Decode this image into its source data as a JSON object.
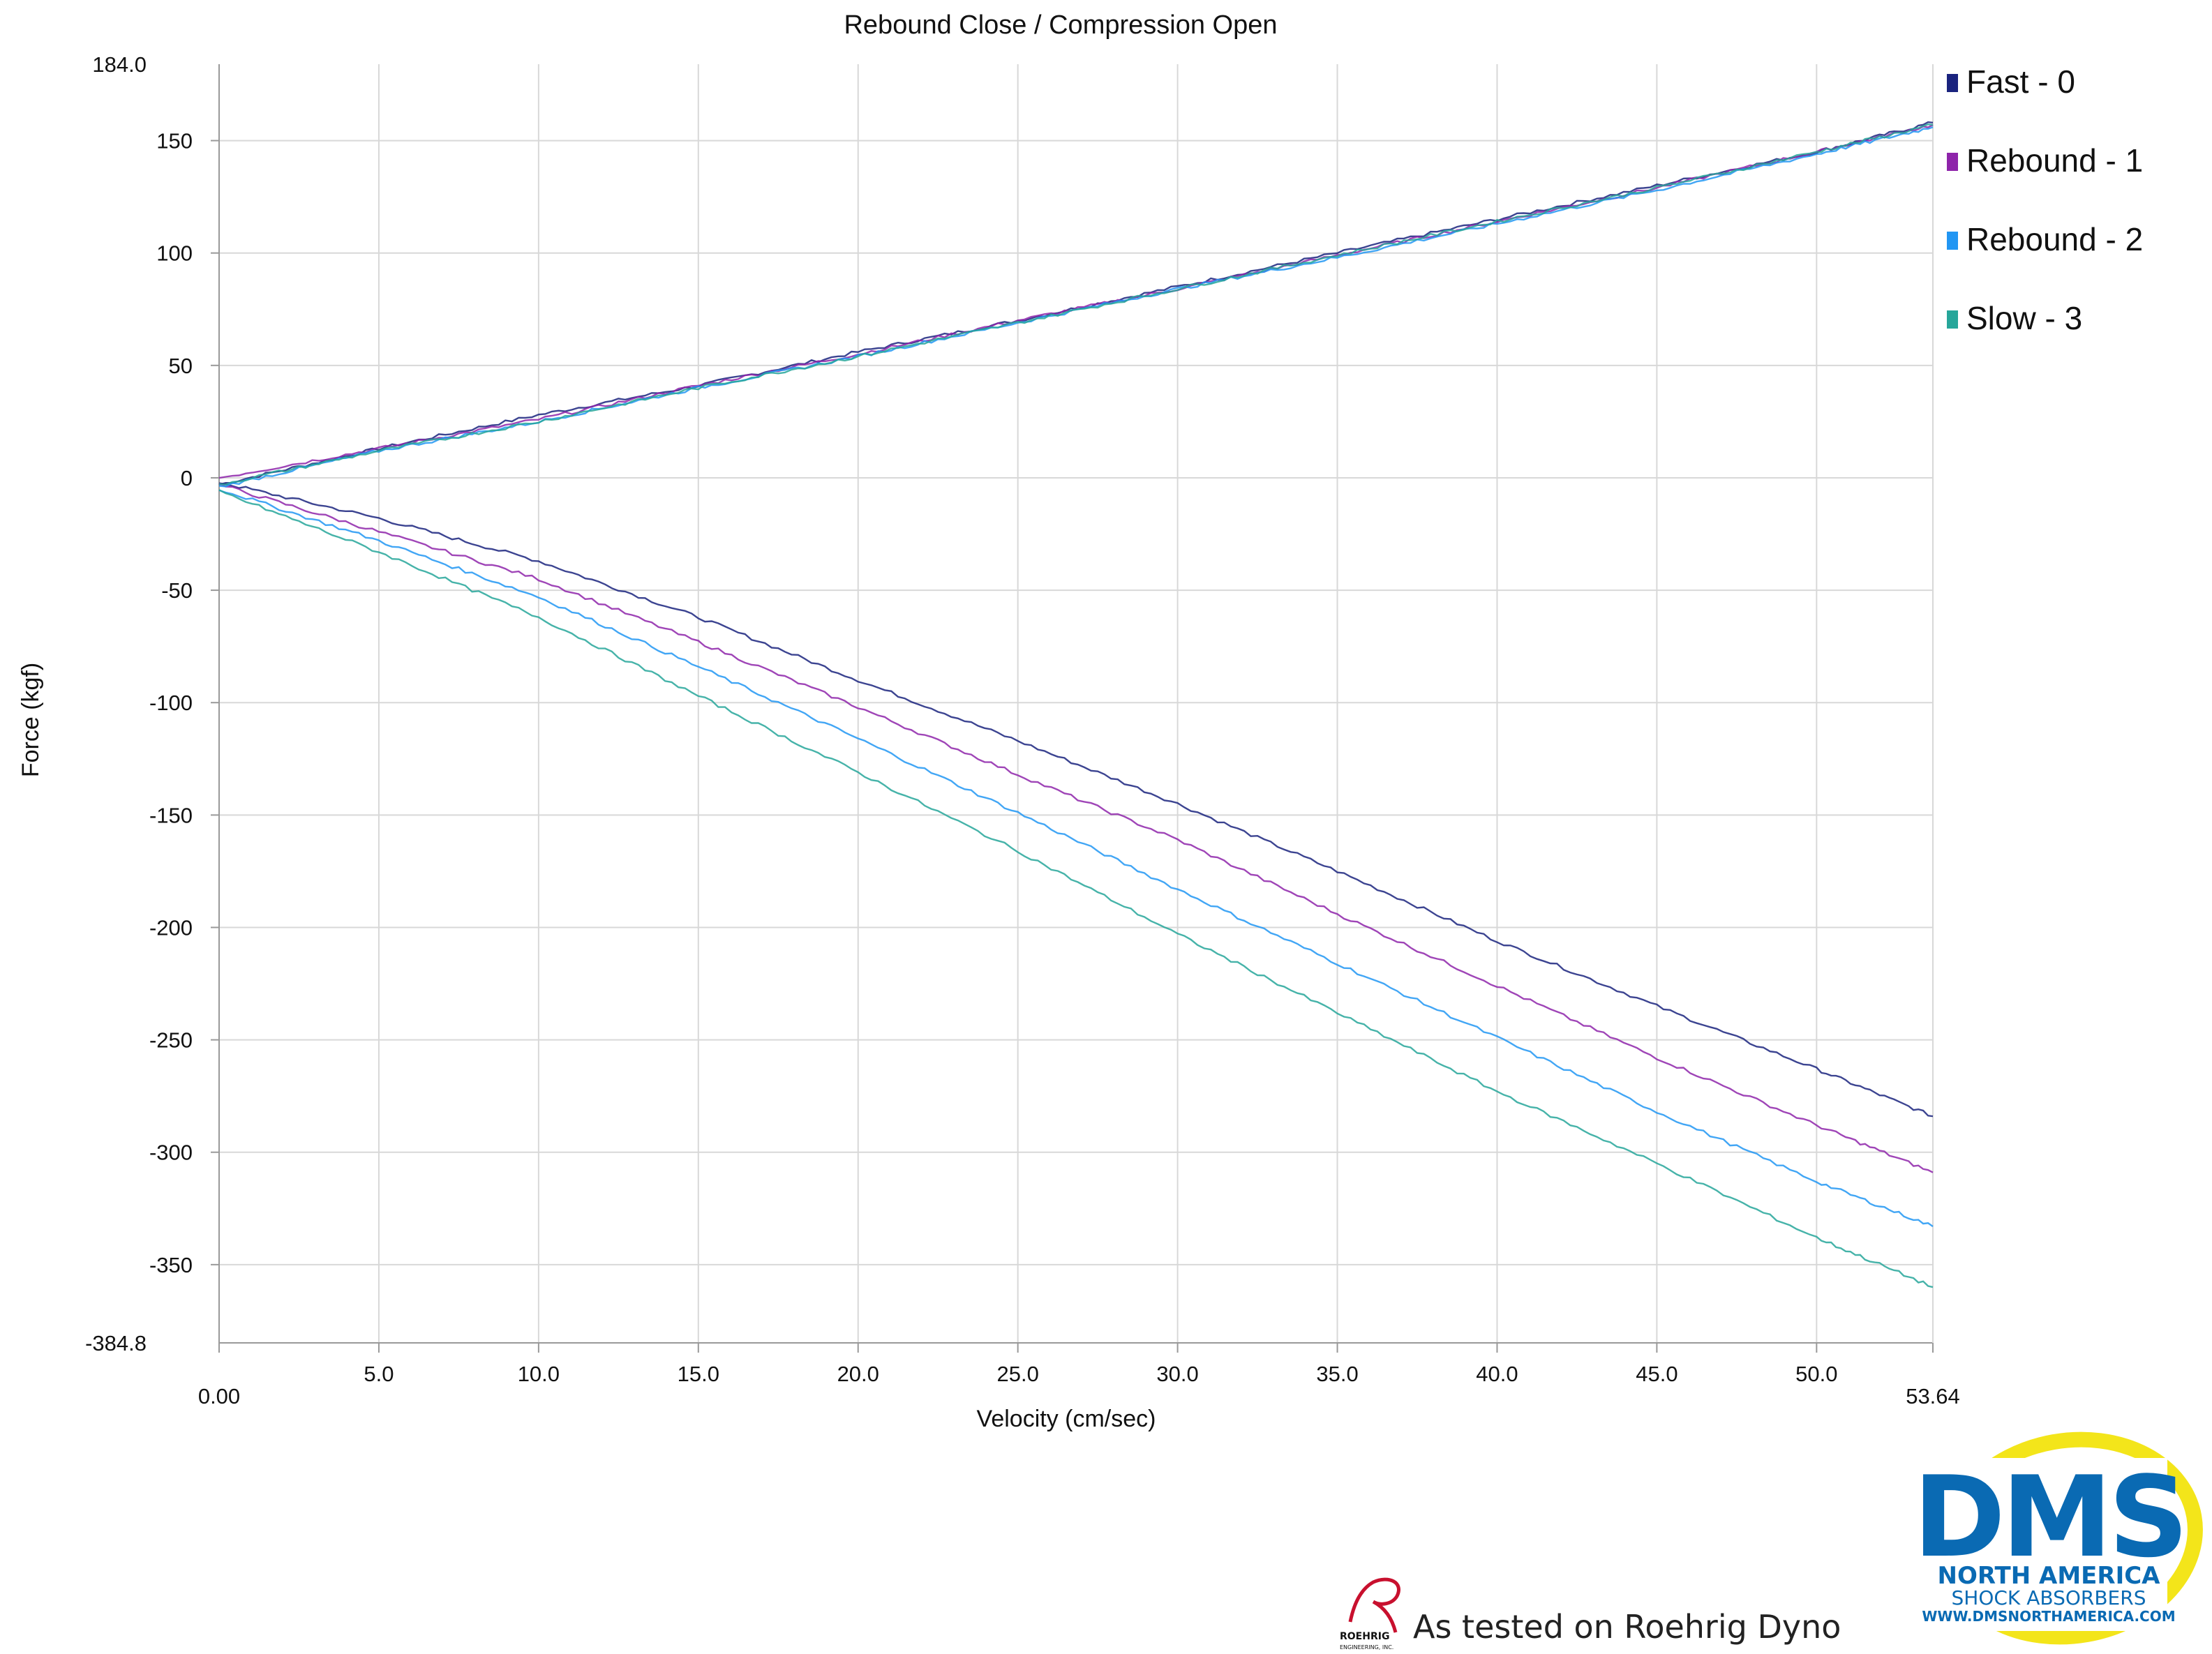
{
  "chart_data": {
    "type": "line",
    "title": "Rebound Close / Compression Open",
    "xlabel": "Velocity (cm/sec)",
    "ylabel": "Force (kgf)",
    "xlim": [
      0,
      53.64
    ],
    "ylim": [
      -384.8,
      184.0
    ],
    "x_ticks": [
      0,
      5,
      10,
      15,
      20,
      25,
      30,
      35,
      40,
      45,
      50,
      53.64
    ],
    "x_tick_labels": [
      "0.00",
      "5.0",
      "10.0",
      "15.0",
      "20.0",
      "25.0",
      "30.0",
      "35.0",
      "40.0",
      "45.0",
      "50.0",
      "53.64"
    ],
    "y_ticks": [
      184.0,
      150,
      100,
      50,
      0,
      -50,
      -100,
      -150,
      -200,
      -250,
      -300,
      -350,
      -384.8
    ],
    "y_tick_labels": [
      "184.0",
      "150",
      "100",
      "50",
      "0",
      "-50",
      "-100",
      "-150",
      "-200",
      "-250",
      "-300",
      "-350",
      "-384.8"
    ],
    "grid": true,
    "legend_position": "top-right",
    "series": [
      {
        "name": "Fast - 0",
        "color": "#1a237e",
        "compression": {
          "x": [
            0,
            5,
            10,
            15,
            20,
            25,
            30,
            35,
            40,
            45,
            50,
            53.64
          ],
          "y": [
            -3,
            13,
            28,
            41,
            56,
            70,
            85,
            100,
            115,
            130,
            145,
            158
          ]
        },
        "rebound": {
          "x": [
            0,
            5,
            10,
            15,
            20,
            25,
            30,
            35,
            40,
            45,
            50,
            53.64
          ],
          "y": [
            -2,
            -18,
            -37,
            -62,
            -90,
            -117,
            -145,
            -175,
            -206,
            -235,
            -263,
            -284
          ]
        }
      },
      {
        "name": "Rebound - 1",
        "color": "#8e24aa",
        "compression": {
          "x": [
            0,
            5,
            10,
            15,
            20,
            25,
            30,
            35,
            40,
            45,
            50,
            53.64
          ],
          "y": [
            0,
            13,
            26,
            41,
            55,
            70,
            84,
            99,
            114,
            129,
            145,
            157
          ]
        },
        "rebound": {
          "x": [
            0,
            5,
            10,
            15,
            20,
            25,
            30,
            35,
            40,
            45,
            50,
            53.64
          ],
          "y": [
            -3,
            -24,
            -45,
            -73,
            -102,
            -132,
            -161,
            -194,
            -226,
            -258,
            -288,
            -309
          ]
        }
      },
      {
        "name": "Rebound - 2",
        "color": "#2196f3",
        "compression": {
          "x": [
            0,
            5,
            10,
            15,
            20,
            25,
            30,
            35,
            40,
            45,
            50,
            53.64
          ],
          "y": [
            -4,
            12,
            25,
            40,
            54,
            69,
            84,
            98,
            113,
            128,
            144,
            156
          ]
        },
        "rebound": {
          "x": [
            0,
            5,
            10,
            15,
            20,
            25,
            30,
            35,
            40,
            45,
            50,
            53.64
          ],
          "y": [
            -5,
            -28,
            -53,
            -84,
            -116,
            -149,
            -183,
            -216,
            -249,
            -282,
            -313,
            -333
          ]
        }
      },
      {
        "name": "Slow - 3",
        "color": "#26a69a",
        "compression": {
          "x": [
            0,
            5,
            10,
            15,
            20,
            25,
            30,
            35,
            40,
            45,
            50,
            53.64
          ],
          "y": [
            -3,
            12,
            25,
            40,
            54,
            69,
            84,
            99,
            114,
            129,
            145,
            157
          ]
        },
        "rebound": {
          "x": [
            0,
            5,
            10,
            15,
            20,
            25,
            30,
            35,
            40,
            45,
            50,
            53.64
          ],
          "y": [
            -6,
            -33,
            -62,
            -97,
            -131,
            -166,
            -203,
            -238,
            -273,
            -305,
            -338,
            -360
          ]
        }
      }
    ]
  },
  "logo": {
    "name": "DMS",
    "line1": "NORTH AMERICA",
    "line2": "SHOCK ABSORBERS",
    "url": "WWW.DMSNORTHAMERICA.COM",
    "primary_color": "#0a6ab3",
    "ring_color": "#f3e51a"
  },
  "roehrig_mark": {
    "name": "ROEHRIG",
    "sub": "ENGINEERING, INC.",
    "accent_color": "#c8102e"
  },
  "footer": {
    "tested_text": "As tested on Roehrig Dyno"
  }
}
